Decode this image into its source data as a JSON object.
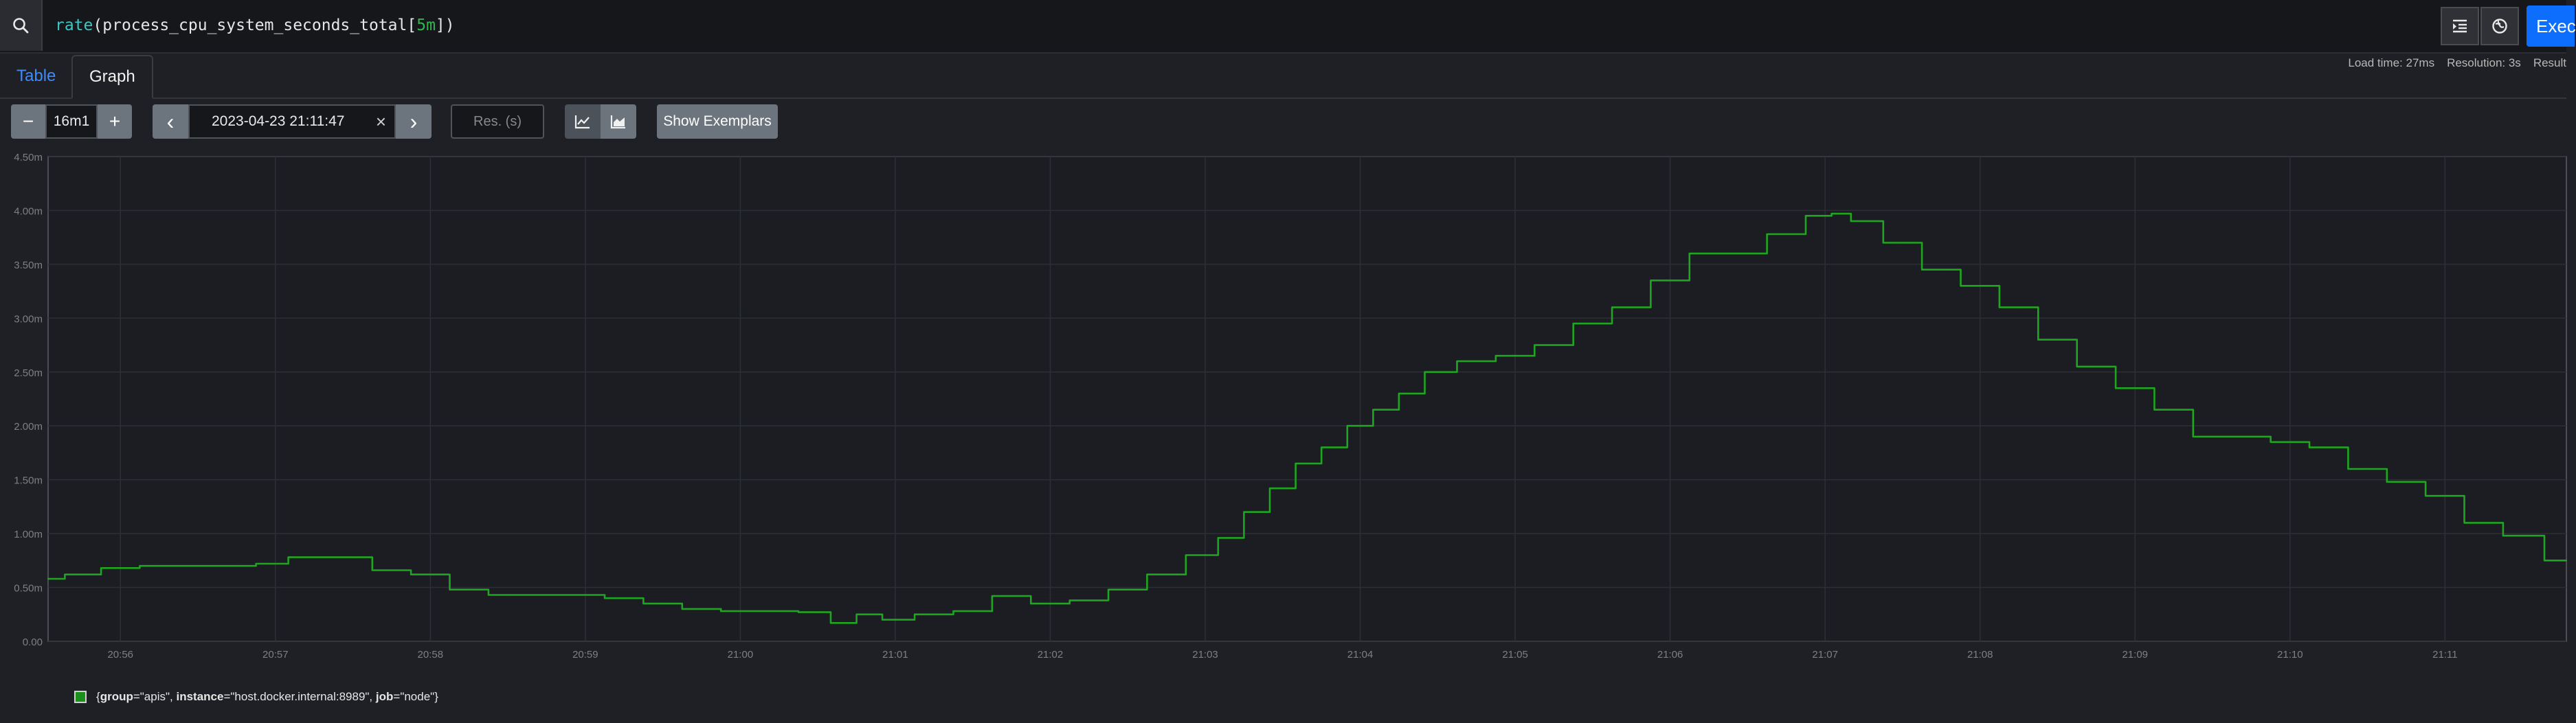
{
  "query": {
    "fn": "rate",
    "open_paren": "(",
    "metric": "process_cpu_system_seconds_total",
    "range_open": "[",
    "range": "5m",
    "range_close": "]",
    "close_paren": ")"
  },
  "toolbar": {
    "execute_label": "Exec",
    "format_icon": "indent-icon",
    "metrics_explorer_icon": "globe-icon"
  },
  "tabs": [
    {
      "label": "Table",
      "active": false
    },
    {
      "label": "Graph",
      "active": true
    }
  ],
  "stats": {
    "load_time": "Load time: 27ms",
    "resolution": "Resolution: 3s",
    "result": "Result"
  },
  "controls": {
    "range_minus": "−",
    "range_value": "16m1",
    "range_plus": "+",
    "prev": "‹",
    "end_time": "2023-04-23 21:11:47",
    "clear": "×",
    "next": "›",
    "resolution_placeholder": "Res. (s)",
    "show_exemplars": "Show Exemplars"
  },
  "colors": {
    "series": "#1fa51f",
    "accent": "#0d6efd",
    "link": "#3d8bfd"
  },
  "legend": {
    "open": "{",
    "k1": "group",
    "v1": "=\"apis\", ",
    "k2": "instance",
    "v2": "=\"host.docker.internal:8989\", ",
    "k3": "job",
    "v3": "=\"node\"}"
  },
  "chart_data": {
    "type": "line",
    "ylim": [
      0,
      4.5
    ],
    "yticks": [
      0,
      0.5,
      1.0,
      1.5,
      2.0,
      2.5,
      3.0,
      3.5,
      4.0,
      4.5
    ],
    "ytick_labels": [
      "0.00",
      "0.50m",
      "1.00m",
      "1.50m",
      "2.00m",
      "2.50m",
      "3.00m",
      "3.50m",
      "4.00m",
      "4.50m"
    ],
    "xlim": [
      "20:55:32",
      "21:11:47"
    ],
    "xticks": [
      "20:56",
      "20:57",
      "20:58",
      "20:59",
      "21:00",
      "21:01",
      "21:02",
      "21:03",
      "21:04",
      "21:05",
      "21:06",
      "21:07",
      "21:08",
      "21:09",
      "21:10",
      "21:11"
    ],
    "grid": true,
    "series": [
      {
        "name": "{group=\"apis\", instance=\"host.docker.internal:8989\", job=\"node\"}",
        "x": [
          "20:55:32",
          "20:55:45",
          "20:56:00",
          "20:56:15",
          "20:56:30",
          "20:56:45",
          "20:57:00",
          "20:57:10",
          "20:57:30",
          "20:57:45",
          "20:58:00",
          "20:58:15",
          "20:58:30",
          "20:58:45",
          "20:59:00",
          "20:59:15",
          "20:59:30",
          "20:59:45",
          "21:00:00",
          "21:00:15",
          "21:00:30",
          "21:00:40",
          "21:00:50",
          "21:01:00",
          "21:01:15",
          "21:01:30",
          "21:01:45",
          "21:02:00",
          "21:02:15",
          "21:02:30",
          "21:02:45",
          "21:03:00",
          "21:03:10",
          "21:03:20",
          "21:03:30",
          "21:03:40",
          "21:03:50",
          "21:04:00",
          "21:04:10",
          "21:04:20",
          "21:04:30",
          "21:04:45",
          "21:05:00",
          "21:05:15",
          "21:05:30",
          "21:05:45",
          "21:06:00",
          "21:06:15",
          "21:06:30",
          "21:06:45",
          "21:07:00",
          "21:07:05",
          "21:07:15",
          "21:07:30",
          "21:07:45",
          "21:08:00",
          "21:08:15",
          "21:08:30",
          "21:08:45",
          "21:09:00",
          "21:09:15",
          "21:09:30",
          "21:09:45",
          "21:10:00",
          "21:10:15",
          "21:10:30",
          "21:10:45",
          "21:11:00",
          "21:11:15",
          "21:11:30",
          "21:11:47"
        ],
        "y": [
          0.58,
          0.62,
          0.68,
          0.7,
          0.7,
          0.7,
          0.72,
          0.78,
          0.78,
          0.66,
          0.62,
          0.48,
          0.43,
          0.43,
          0.43,
          0.4,
          0.35,
          0.3,
          0.28,
          0.28,
          0.27,
          0.17,
          0.25,
          0.2,
          0.25,
          0.28,
          0.42,
          0.35,
          0.38,
          0.48,
          0.62,
          0.8,
          0.96,
          1.2,
          1.42,
          1.65,
          1.8,
          2.0,
          2.15,
          2.3,
          2.5,
          2.6,
          2.65,
          2.75,
          2.95,
          3.1,
          3.35,
          3.6,
          3.6,
          3.78,
          3.95,
          3.97,
          3.9,
          3.7,
          3.45,
          3.3,
          3.1,
          2.8,
          2.55,
          2.35,
          2.15,
          1.9,
          1.9,
          1.85,
          1.8,
          1.6,
          1.48,
          1.35,
          1.1,
          0.98,
          0.75
        ]
      }
    ]
  }
}
